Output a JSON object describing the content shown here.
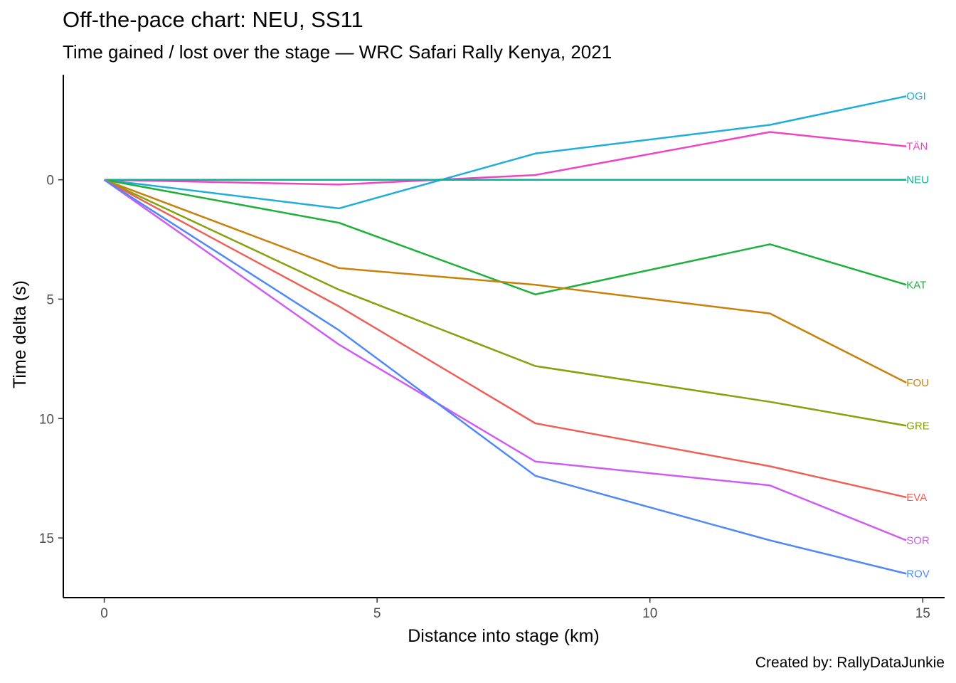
{
  "title": "Off-the-pace chart: NEU, SS11",
  "subtitle": "Time gained / lost over the stage — WRC Safari Rally Kenya, 2021",
  "caption": "Created by: RallyDataJunkie",
  "chart_data": {
    "type": "line",
    "title": "Off-the-pace chart: NEU, SS11",
    "xlabel": "Distance into stage (km)",
    "ylabel": "Time delta (s)",
    "xlim": [
      -0.75,
      15.4
    ],
    "ylim": [
      -4.4,
      17.5
    ],
    "y_reversed": true,
    "xticks": [
      0,
      5,
      10,
      15
    ],
    "yticks": [
      0,
      5,
      10,
      15
    ],
    "grid": false,
    "legend": "direct labels at line ends (right)",
    "x": [
      0,
      4.3,
      7.9,
      12.2,
      14.7
    ],
    "series": [
      {
        "name": "OGI",
        "color": "#1FADDB",
        "values": [
          0,
          1.2,
          -1.1,
          -2.3,
          -3.5
        ]
      },
      {
        "name": "TÄN",
        "color": "#EE45C4",
        "values": [
          0,
          0.2,
          -0.2,
          -2.0,
          -1.4
        ]
      },
      {
        "name": "NEU",
        "color": "#00B896",
        "values": [
          0,
          0,
          0,
          0,
          0
        ]
      },
      {
        "name": "KAT",
        "color": "#1DB13B",
        "values": [
          0,
          1.8,
          4.8,
          2.7,
          4.4
        ]
      },
      {
        "name": "FOU",
        "color": "#C9800B",
        "values": [
          0,
          3.7,
          4.4,
          5.6,
          8.5
        ]
      },
      {
        "name": "GRE",
        "color": "#83A20B",
        "values": [
          0,
          4.6,
          7.8,
          9.3,
          10.3
        ]
      },
      {
        "name": "EVA",
        "color": "#EE6057",
        "values": [
          0,
          5.3,
          10.2,
          12.0,
          13.3
        ]
      },
      {
        "name": "SOR",
        "color": "#CE5BF2",
        "values": [
          0,
          6.9,
          11.8,
          12.8,
          15.1
        ]
      },
      {
        "name": "ROV",
        "color": "#4F88F8",
        "values": [
          0,
          6.3,
          12.4,
          15.1,
          16.5
        ]
      }
    ]
  }
}
